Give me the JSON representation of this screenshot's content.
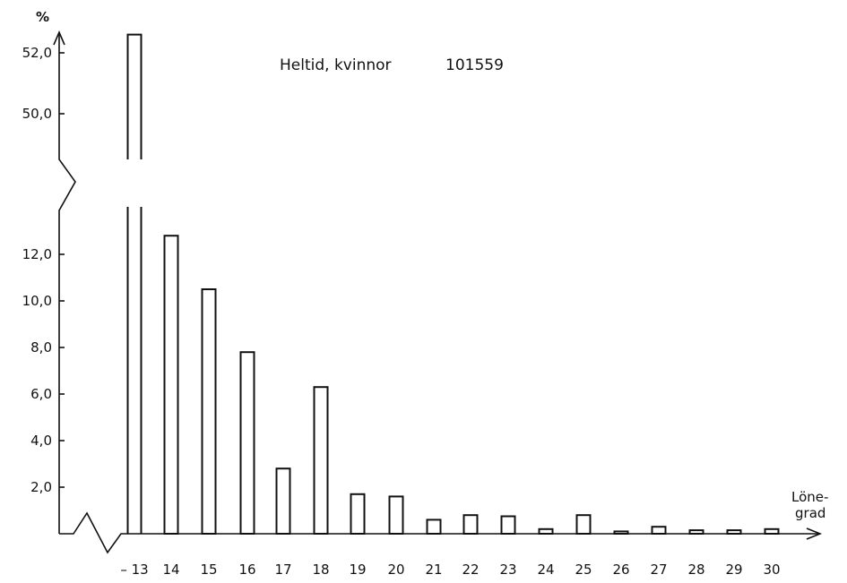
{
  "chart_data": {
    "type": "bar",
    "title": "Heltid, kvinnor",
    "count": "101559",
    "ylabel": "%",
    "xlabel": [
      "Löne-",
      "grad"
    ],
    "ylim": [
      0,
      53
    ],
    "y_axis_break": [
      13.5,
      49
    ],
    "categories": [
      "-13",
      "14",
      "15",
      "16",
      "17",
      "18",
      "19",
      "20",
      "21",
      "22",
      "23",
      "24",
      "25",
      "26",
      "27",
      "28",
      "29",
      "30"
    ],
    "values": [
      52.6,
      12.8,
      10.5,
      7.8,
      2.8,
      6.3,
      1.7,
      1.6,
      0.6,
      0.8,
      0.75,
      0.2,
      0.8,
      0.1,
      0.3,
      0.15,
      0.15,
      0.2
    ],
    "yticks": [
      {
        "value": 2.0,
        "label": "2,0"
      },
      {
        "value": 4.0,
        "label": "4,0"
      },
      {
        "value": 6.0,
        "label": "6,0"
      },
      {
        "value": 8.0,
        "label": "8,0"
      },
      {
        "value": 10.0,
        "label": "10,0"
      },
      {
        "value": 12.0,
        "label": "12,0"
      },
      {
        "value": 50.0,
        "label": "50,0"
      },
      {
        "value": 52.0,
        "label": "52,0"
      }
    ]
  }
}
